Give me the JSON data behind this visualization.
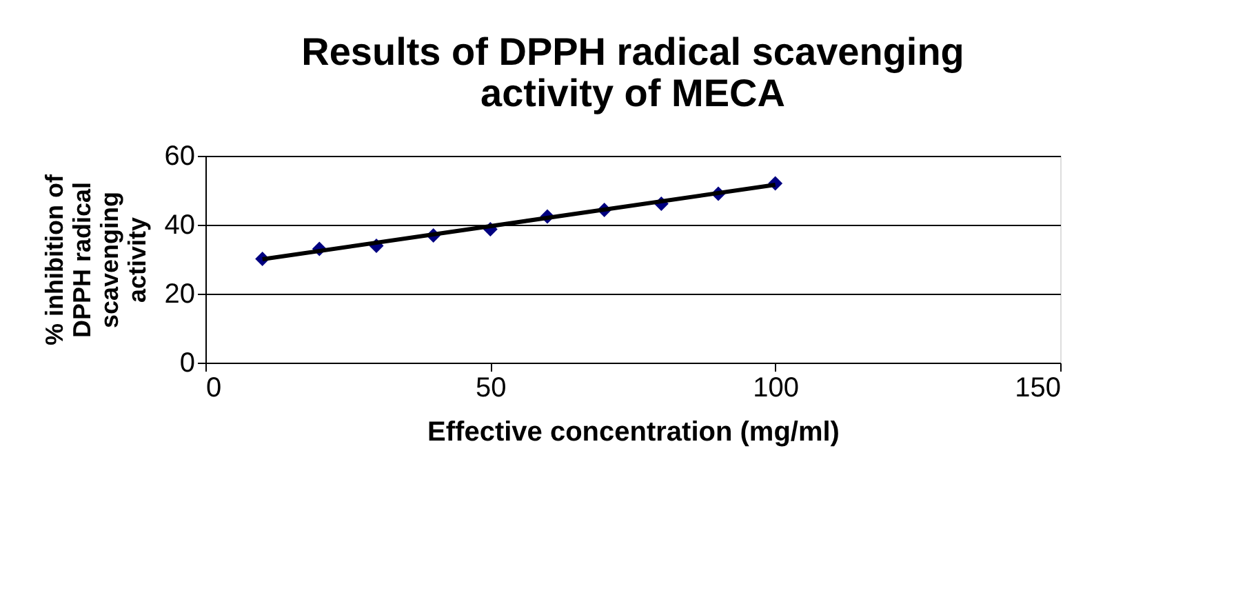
{
  "chart_data": {
    "type": "scatter",
    "title": [
      "Results of DPPH radical scavenging",
      "activity of MECA"
    ],
    "xlabel": "Effective concentration (mg/ml)",
    "ylabel": [
      "% inhibition of",
      "DPPH radical",
      "scavenging",
      "activity"
    ],
    "series": [
      {
        "color": "#000080",
        "marker": "diamond",
        "x": [
          10,
          20,
          30,
          40,
          50,
          60,
          70,
          80,
          90,
          100
        ],
        "values": [
          30.1,
          33.0,
          33.9,
          36.9,
          38.7,
          42.4,
          44.3,
          46.1,
          49.0,
          52.0
        ]
      },
      {
        "type": "line",
        "color": "#000000",
        "x": [
          10,
          100
        ],
        "values": [
          30.0,
          51.6
        ]
      }
    ],
    "xlim": [
      0,
      150
    ],
    "xticks": [
      0,
      50,
      100,
      150
    ],
    "ylim": [
      0,
      60
    ],
    "yticks": [
      0,
      20,
      40,
      60
    ],
    "grid": "y"
  }
}
